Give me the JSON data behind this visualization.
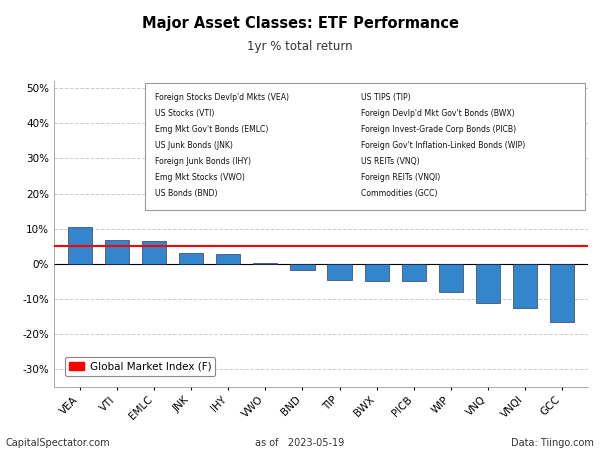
{
  "title": "Major Asset Classes: ETF Performance",
  "subtitle": "1yr % total return",
  "categories": [
    "VEA",
    "VTI",
    "EMLC",
    "JNK",
    "IHY",
    "VWO",
    "BND",
    "TIP",
    "BWX",
    "PICB",
    "WIP",
    "VNQ",
    "VNQI",
    "GCC"
  ],
  "values": [
    10.5,
    6.8,
    6.5,
    3.0,
    2.8,
    0.15,
    -1.8,
    -4.5,
    -4.8,
    -4.8,
    -8.0,
    -11.2,
    -12.5,
    -16.5
  ],
  "bar_color": "#3385cc",
  "hline_value": 5.0,
  "hline_color": "red",
  "ylim": [
    -35,
    52
  ],
  "yticks": [
    -30,
    -20,
    -10,
    0,
    10,
    20,
    30,
    40,
    50
  ],
  "legend_labels_left": [
    "Foreign Stocks Devlp'd Mkts (VEA)",
    "US Stocks (VTI)",
    "Emg Mkt Gov't Bonds (EMLC)",
    "US Junk Bonds (JNK)",
    "Foreign Junk Bonds (IHY)",
    "Emg Mkt Stocks (VWO)",
    "US Bonds (BND)"
  ],
  "legend_labels_right": [
    "US TIPS (TIP)",
    "Foreign Devlp'd Mkt Gov't Bonds (BWX)",
    "Foreign Invest-Grade Corp Bonds (PICB)",
    "Foreign Gov't Inflation-Linked Bonds (WIP)",
    "US REITs (VNQ)",
    "Foreign REITs (VNQI)",
    "Commodities (GCC)"
  ],
  "footer_left": "CapitalSpectator.com",
  "footer_center": "as of   2023-05-19",
  "footer_right": "Data: Tiingo.com",
  "global_market_label": "Global Market Index (F)",
  "background_color": "#ffffff",
  "grid_color": "#cccccc"
}
